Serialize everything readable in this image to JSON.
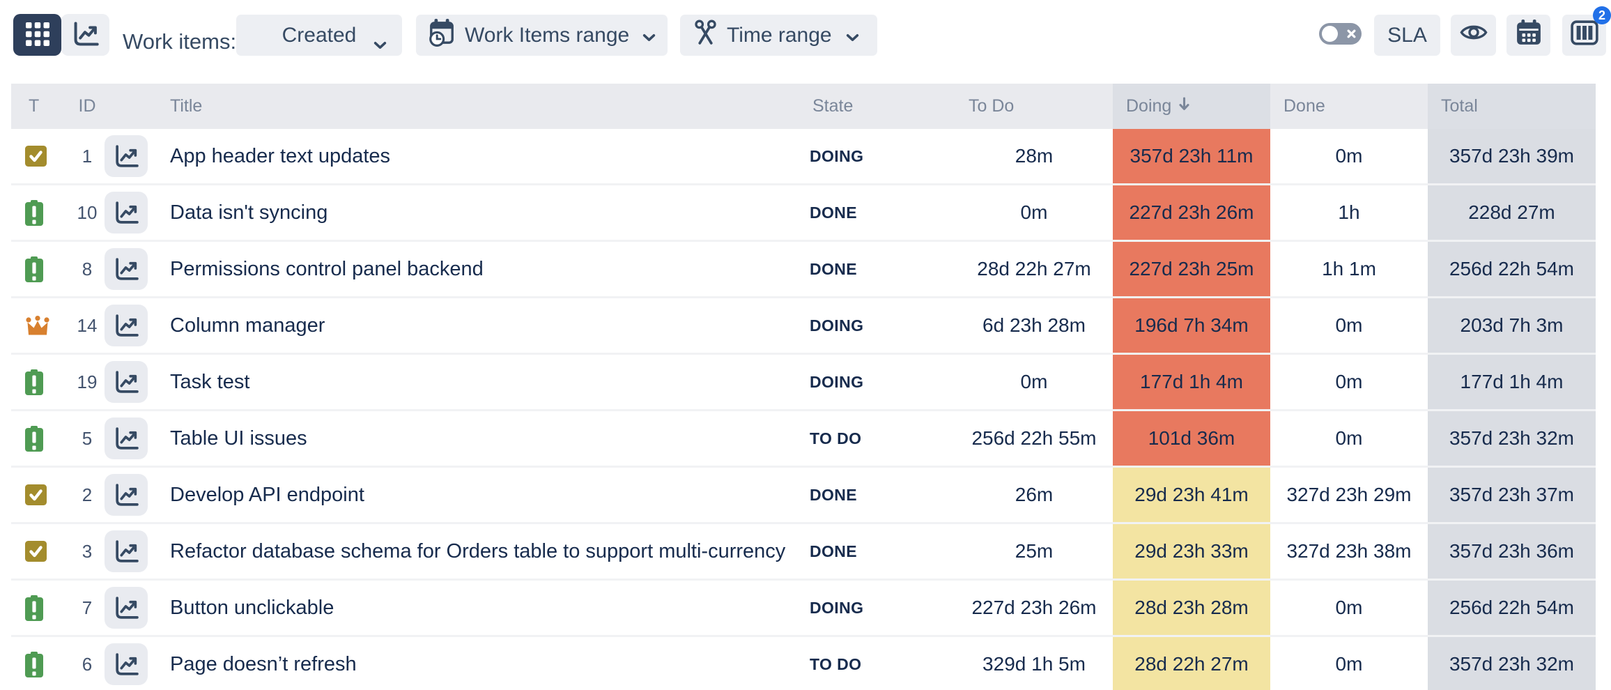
{
  "toolbar": {
    "work_items_label": "Work items:",
    "created_dropdown": {
      "value": "Created"
    },
    "work_items_range_button": "Work Items range",
    "time_range_button": "Time range",
    "sla_button": "SLA",
    "columns_badge_count": "2",
    "icons": [
      "grid-view-icon",
      "chart-view-icon",
      "calendar-clock-icon",
      "scissors-icon",
      "toggle-off-icon",
      "eye-icon",
      "calendar-icon",
      "columns-icon"
    ]
  },
  "table": {
    "headers": {
      "type": "T",
      "id": "ID",
      "title": "Title",
      "state": "State",
      "todo": "To Do",
      "doing": "Doing",
      "done": "Done",
      "total": "Total"
    },
    "sort": {
      "column": "Doing",
      "direction": "descending"
    },
    "rows": [
      {
        "type": "task",
        "id": "1",
        "title": "App header text updates",
        "state": "DOING",
        "todo": "28m",
        "doing": "357d 23h 11m",
        "doing_level": "red",
        "done": "0m",
        "total": "357d 23h 39m"
      },
      {
        "type": "issue",
        "id": "10",
        "title": "Data isn't syncing",
        "state": "DONE",
        "todo": "0m",
        "doing": "227d 23h 26m",
        "doing_level": "red",
        "done": "1h",
        "total": "228d 27m"
      },
      {
        "type": "issue",
        "id": "8",
        "title": "Permissions control panel backend",
        "state": "DONE",
        "todo": "28d 22h 27m",
        "doing": "227d 23h 25m",
        "doing_level": "red",
        "done": "1h 1m",
        "total": "256d 22h 54m"
      },
      {
        "type": "epic",
        "id": "14",
        "title": "Column manager",
        "state": "DOING",
        "todo": "6d 23h 28m",
        "doing": "196d 7h 34m",
        "doing_level": "red",
        "done": "0m",
        "total": "203d 7h 3m"
      },
      {
        "type": "issue",
        "id": "19",
        "title": "Task test",
        "state": "DOING",
        "todo": "0m",
        "doing": "177d 1h 4m",
        "doing_level": "red",
        "done": "0m",
        "total": "177d 1h 4m"
      },
      {
        "type": "issue",
        "id": "5",
        "title": "Table UI issues",
        "state": "TO DO",
        "todo": "256d 22h 55m",
        "doing": "101d 36m",
        "doing_level": "red",
        "done": "0m",
        "total": "357d 23h 32m"
      },
      {
        "type": "task",
        "id": "2",
        "title": "Develop API endpoint",
        "state": "DONE",
        "todo": "26m",
        "doing": "29d 23h 41m",
        "doing_level": "yellow",
        "done": "327d 23h 29m",
        "total": "357d 23h 37m"
      },
      {
        "type": "task",
        "id": "3",
        "title": "Refactor database schema for Orders table to support multi-currency",
        "state": "DONE",
        "todo": "25m",
        "doing": "29d 23h 33m",
        "doing_level": "yellow",
        "done": "327d 23h 38m",
        "total": "357d 23h 36m"
      },
      {
        "type": "issue",
        "id": "7",
        "title": "Button unclickable",
        "state": "DOING",
        "todo": "227d 23h 26m",
        "doing": "28d 23h 28m",
        "doing_level": "yellow",
        "done": "0m",
        "total": "256d 22h 54m"
      },
      {
        "type": "issue",
        "id": "6",
        "title": "Page doesn’t refresh",
        "state": "TO DO",
        "todo": "329d 1h 5m",
        "doing": "28d 22h 27m",
        "doing_level": "yellow",
        "done": "0m",
        "total": "357d 23h 32m"
      }
    ]
  },
  "colors": {
    "doing_overdue_red": "#E8795F",
    "doing_warning_yellow": "#F3E4A2",
    "total_column_bg": "#DADDE3",
    "header_bg": "#E9EAEE",
    "sorted_header_bg": "#DCDFE5",
    "text_navy": "#172B4D",
    "icon_navy": "#364A63",
    "selected_view_bg": "#2E3F5B",
    "badge_blue": "#2170E8",
    "task_icon_olive": "#A38C2D",
    "issue_icon_green": "#4F9B53",
    "epic_icon_orange": "#D8802F"
  }
}
